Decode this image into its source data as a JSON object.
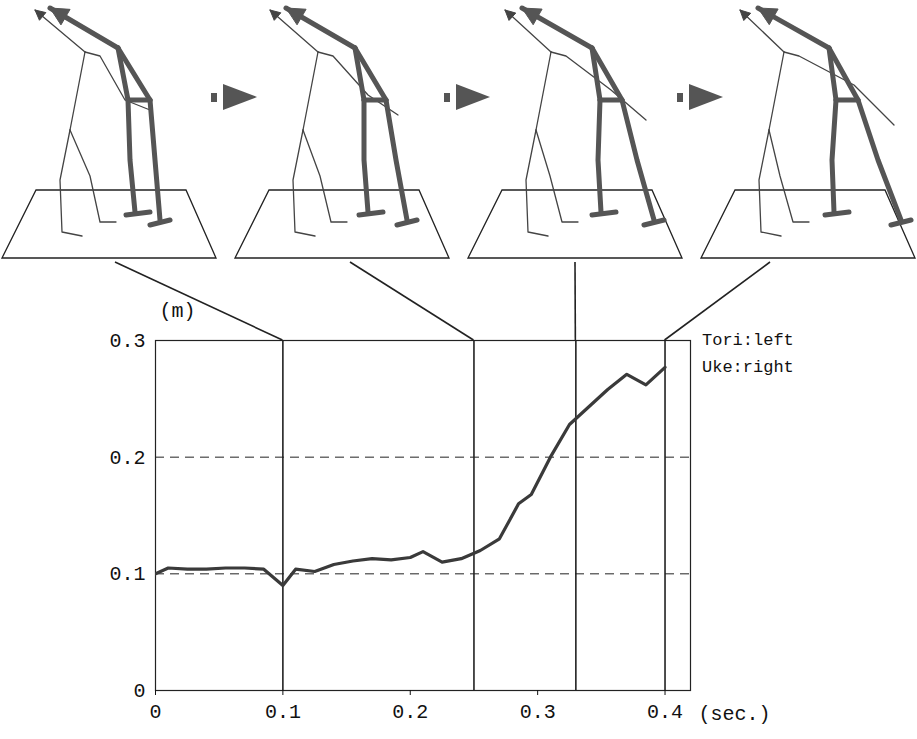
{
  "chart_data": {
    "type": "line",
    "x": [
      0,
      0.01,
      0.025,
      0.04,
      0.055,
      0.07,
      0.085,
      0.1,
      0.11,
      0.125,
      0.14,
      0.155,
      0.17,
      0.185,
      0.2,
      0.21,
      0.225,
      0.24,
      0.255,
      0.27,
      0.285,
      0.295,
      0.31,
      0.325,
      0.34,
      0.355,
      0.37,
      0.385,
      0.4
    ],
    "values": [
      0.1,
      0.105,
      0.104,
      0.104,
      0.105,
      0.105,
      0.104,
      0.09,
      0.104,
      0.102,
      0.108,
      0.111,
      0.113,
      0.112,
      0.114,
      0.119,
      0.11,
      0.113,
      0.12,
      0.13,
      0.16,
      0.168,
      0.2,
      0.228,
      0.243,
      0.258,
      0.271,
      0.262,
      0.277
    ],
    "color": "#3a3a3a",
    "line_style": "solid",
    "x_label": "(sec.)",
    "y_label": "(m)",
    "xlim": [
      0,
      0.42
    ],
    "ylim": [
      0,
      0.3
    ],
    "xticks": [
      0,
      0.1,
      0.2,
      0.3,
      0.4
    ],
    "yticks": [
      0,
      0.1,
      0.2,
      0.3
    ],
    "grid": true,
    "snapshot_times": [
      0.1,
      0.25,
      0.33,
      0.4
    ],
    "annotations": [
      "Tori:left",
      "Uke:right"
    ]
  }
}
